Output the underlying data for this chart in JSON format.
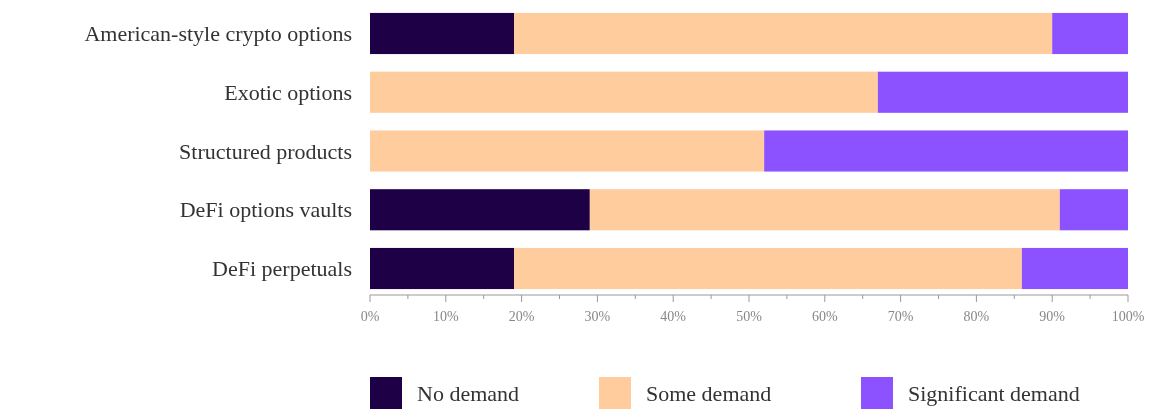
{
  "chart_data": {
    "type": "bar",
    "orientation": "horizontal",
    "stacked": true,
    "categories": [
      "American-style crypto options",
      "Exotic options",
      "Structured products",
      "DeFi options vaults",
      "DeFi perpetuals"
    ],
    "series": [
      {
        "name": "No demand",
        "color": "#1e0047",
        "values": [
          19,
          0,
          0,
          29,
          19
        ]
      },
      {
        "name": "Some demand",
        "color": "#ffcc9e",
        "values": [
          71,
          67,
          52,
          62,
          67
        ]
      },
      {
        "name": "Significant demand",
        "color": "#8c52ff",
        "values": [
          10,
          33,
          48,
          9,
          14
        ]
      }
    ],
    "xlim": [
      0,
      100
    ],
    "xticks": [
      {
        "value": 0,
        "label": "0%"
      },
      {
        "value": 5,
        "label": null
      },
      {
        "value": 10,
        "label": "10%"
      },
      {
        "value": 15,
        "label": null
      },
      {
        "value": 20,
        "label": "20%"
      },
      {
        "value": 25,
        "label": null
      },
      {
        "value": 30,
        "label": "30%"
      },
      {
        "value": 35,
        "label": null
      },
      {
        "value": 40,
        "label": "40%"
      },
      {
        "value": 45,
        "label": null
      },
      {
        "value": 50,
        "label": "50%"
      },
      {
        "value": 55,
        "label": null
      },
      {
        "value": 60,
        "label": "60%"
      },
      {
        "value": 65,
        "label": null
      },
      {
        "value": 70,
        "label": "70%"
      },
      {
        "value": 75,
        "label": null
      },
      {
        "value": 80,
        "label": "80%"
      },
      {
        "value": 85,
        "label": null
      },
      {
        "value": 90,
        "label": "90%"
      },
      {
        "value": 95,
        "label": null
      },
      {
        "value": 100,
        "label": "100%"
      }
    ],
    "grid": false,
    "legend": "bottom"
  }
}
